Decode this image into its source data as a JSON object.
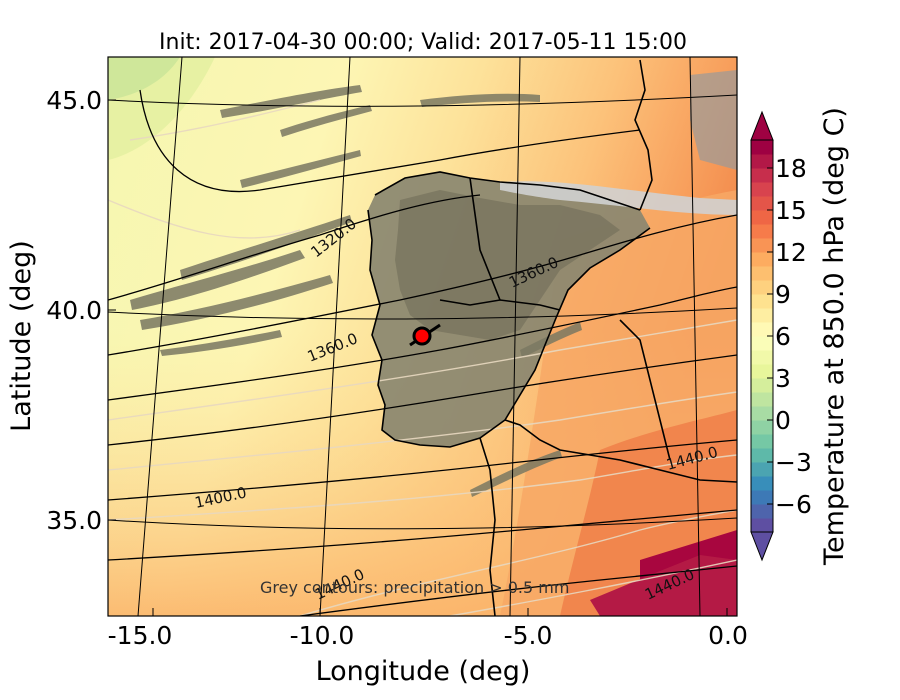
{
  "title": "Init: 2017-04-30 00:00; Valid: 2017-05-11 15:00",
  "axes": {
    "xlabel": "Longitude (deg)",
    "ylabel": "Latitude (deg)",
    "xticks": [
      "-15.0",
      "-10.0",
      "-5.0",
      "0.0"
    ],
    "yticks": [
      "45.0",
      "40.0",
      "35.0"
    ]
  },
  "colorbar": {
    "label": "Temperature at 850.0 hPa (deg C)",
    "ticks": [
      "18",
      "15",
      "12",
      "9",
      "6",
      "3",
      "0",
      "−3",
      "−6"
    ],
    "range": [
      -8,
      20
    ],
    "colors": [
      "#5e4fa2",
      "#3288bd",
      "#66c2a5",
      "#abdda4",
      "#e6f598",
      "#ffffbf",
      "#fee08b",
      "#fdae61",
      "#f46d43",
      "#d53e4f",
      "#9e0142"
    ]
  },
  "annotations": {
    "note": "Grey contours: precipitation > 0.5 mm",
    "contour_labels": [
      "1320.0",
      "1360.0",
      "1360.0",
      "1400.0",
      "1440.0",
      "1440.0",
      "1440.0"
    ]
  },
  "marker": {
    "name": "location-marker",
    "color": "#ff0000",
    "lon": -7.7,
    "lat": 39.3
  }
}
